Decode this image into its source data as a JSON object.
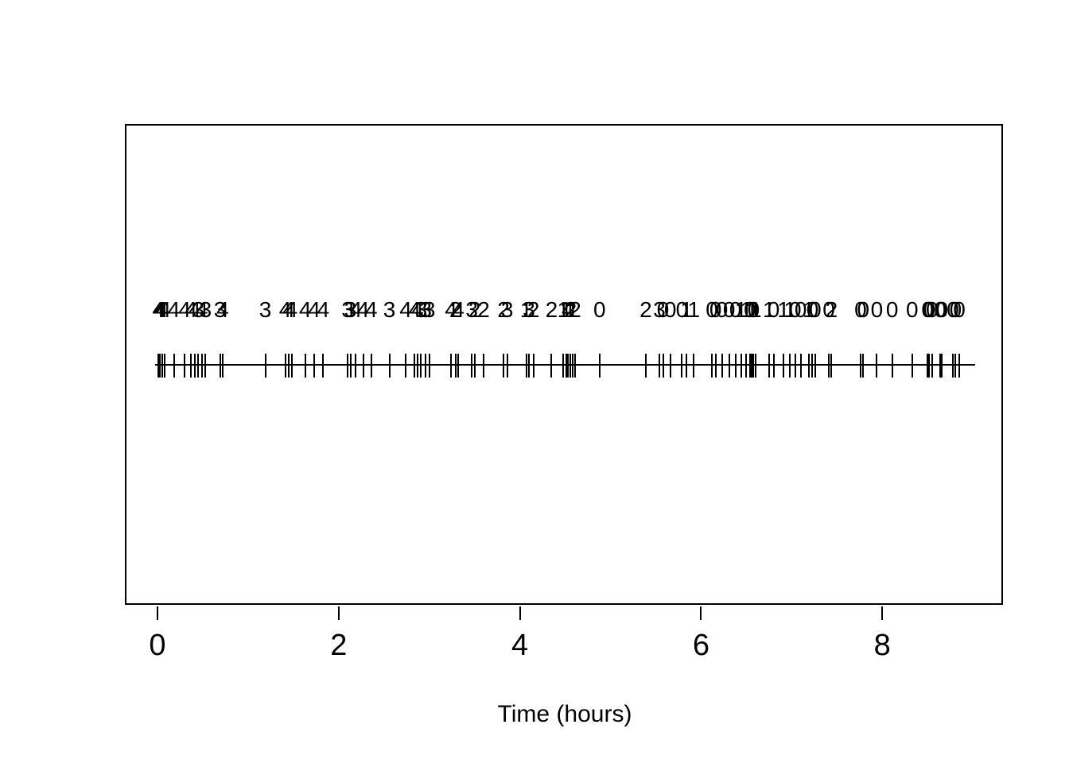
{
  "figure": {
    "background_color": "#ffffff",
    "foreground_color": "#000000"
  },
  "chart_data": {
    "type": "scatter",
    "subtype": "event-rug-plot",
    "title": "",
    "xlabel": "Time (hours)",
    "ylabel": "",
    "xlim": [
      0,
      9
    ],
    "x_tick_labels": [
      "0",
      "2",
      "4",
      "6",
      "8"
    ],
    "x_tick_values": [
      0,
      2,
      4,
      6,
      8
    ],
    "grid": false,
    "legend": "none",
    "description": "Timeline of events; each event is a vertical rug tick on a horizontal line, with an integer mark (0-4) printed above it. Marks trend from 4 near time 0 down to 0 near time 9.",
    "events": [
      {
        "t": 0.01,
        "label": "4"
      },
      {
        "t": 0.03,
        "label": "4"
      },
      {
        "t": 0.05,
        "label": "4"
      },
      {
        "t": 0.08,
        "label": "4"
      },
      {
        "t": 0.18,
        "label": "4"
      },
      {
        "t": 0.3,
        "label": "4"
      },
      {
        "t": 0.37,
        "label": "4"
      },
      {
        "t": 0.41,
        "label": "4"
      },
      {
        "t": 0.45,
        "label": "3"
      },
      {
        "t": 0.49,
        "label": "4"
      },
      {
        "t": 0.53,
        "label": "3"
      },
      {
        "t": 0.69,
        "label": "3"
      },
      {
        "t": 0.72,
        "label": "4"
      },
      {
        "t": 1.19,
        "label": "3"
      },
      {
        "t": 1.41,
        "label": "4"
      },
      {
        "t": 1.45,
        "label": "4"
      },
      {
        "t": 1.48,
        "label": "4"
      },
      {
        "t": 1.63,
        "label": "4"
      },
      {
        "t": 1.73,
        "label": "4"
      },
      {
        "t": 1.83,
        "label": "4"
      },
      {
        "t": 2.1,
        "label": "3"
      },
      {
        "t": 2.13,
        "label": "3"
      },
      {
        "t": 2.19,
        "label": "4"
      },
      {
        "t": 2.27,
        "label": "4"
      },
      {
        "t": 2.36,
        "label": "4"
      },
      {
        "t": 2.56,
        "label": "3"
      },
      {
        "t": 2.74,
        "label": "4"
      },
      {
        "t": 2.84,
        "label": "4"
      },
      {
        "t": 2.87,
        "label": "4"
      },
      {
        "t": 2.91,
        "label": "3"
      },
      {
        "t": 2.96,
        "label": "3"
      },
      {
        "t": 3.0,
        "label": "3"
      },
      {
        "t": 3.24,
        "label": "4"
      },
      {
        "t": 3.29,
        "label": "2"
      },
      {
        "t": 3.32,
        "label": "4"
      },
      {
        "t": 3.47,
        "label": "3"
      },
      {
        "t": 3.5,
        "label": "2"
      },
      {
        "t": 3.6,
        "label": "2"
      },
      {
        "t": 3.82,
        "label": "2"
      },
      {
        "t": 3.86,
        "label": "3"
      },
      {
        "t": 4.07,
        "label": "1"
      },
      {
        "t": 4.1,
        "label": "3"
      },
      {
        "t": 4.15,
        "label": "2"
      },
      {
        "t": 4.35,
        "label": "2"
      },
      {
        "t": 4.48,
        "label": "1"
      },
      {
        "t": 4.51,
        "label": "1"
      },
      {
        "t": 4.53,
        "label": "4"
      },
      {
        "t": 4.56,
        "label": "2"
      },
      {
        "t": 4.58,
        "label": "1"
      },
      {
        "t": 4.61,
        "label": "2"
      },
      {
        "t": 4.88,
        "label": "0"
      },
      {
        "t": 5.39,
        "label": "2"
      },
      {
        "t": 5.54,
        "label": "3"
      },
      {
        "t": 5.58,
        "label": "0"
      },
      {
        "t": 5.66,
        "label": "0"
      },
      {
        "t": 5.79,
        "label": "0"
      },
      {
        "t": 5.84,
        "label": "1"
      },
      {
        "t": 5.92,
        "label": "1"
      },
      {
        "t": 6.12,
        "label": "0"
      },
      {
        "t": 6.16,
        "label": "0"
      },
      {
        "t": 6.23,
        "label": "0"
      },
      {
        "t": 6.31,
        "label": "0"
      },
      {
        "t": 6.38,
        "label": "0"
      },
      {
        "t": 6.44,
        "label": "1"
      },
      {
        "t": 6.5,
        "label": "1"
      },
      {
        "t": 6.54,
        "label": "0"
      },
      {
        "t": 6.56,
        "label": "1"
      },
      {
        "t": 6.58,
        "label": "0"
      },
      {
        "t": 6.6,
        "label": "1"
      },
      {
        "t": 6.75,
        "label": "1"
      },
      {
        "t": 6.8,
        "label": "0"
      },
      {
        "t": 6.91,
        "label": "1"
      },
      {
        "t": 6.98,
        "label": "1"
      },
      {
        "t": 7.04,
        "label": "0"
      },
      {
        "t": 7.1,
        "label": "0"
      },
      {
        "t": 7.19,
        "label": "1"
      },
      {
        "t": 7.23,
        "label": "0"
      },
      {
        "t": 7.26,
        "label": "0"
      },
      {
        "t": 7.41,
        "label": "0"
      },
      {
        "t": 7.44,
        "label": "2"
      },
      {
        "t": 7.76,
        "label": "0"
      },
      {
        "t": 7.79,
        "label": "0"
      },
      {
        "t": 7.94,
        "label": "0"
      },
      {
        "t": 8.11,
        "label": "0"
      },
      {
        "t": 8.33,
        "label": "0"
      },
      {
        "t": 8.5,
        "label": "0"
      },
      {
        "t": 8.52,
        "label": "0"
      },
      {
        "t": 8.55,
        "label": "0"
      },
      {
        "t": 8.64,
        "label": "0"
      },
      {
        "t": 8.66,
        "label": "0"
      },
      {
        "t": 8.78,
        "label": "0"
      },
      {
        "t": 8.81,
        "label": "0"
      },
      {
        "t": 8.85,
        "label": "0"
      }
    ]
  }
}
